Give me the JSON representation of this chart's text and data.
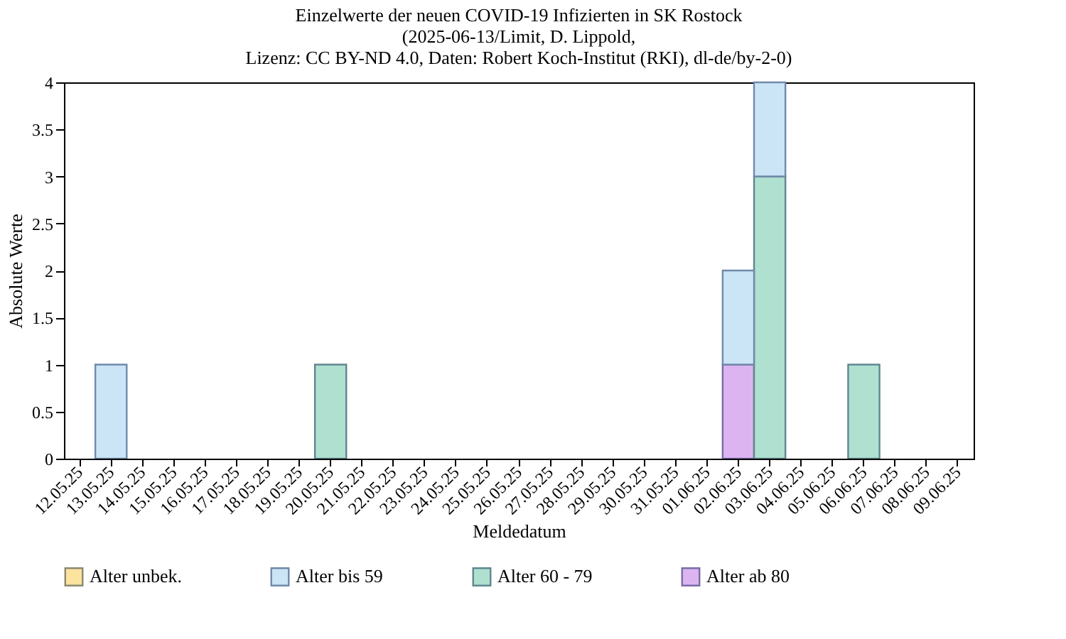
{
  "chart_data": {
    "type": "bar",
    "title": [
      "Einzelwerte der neuen COVID-19 Infizierten in SK Rostock",
      "(2025-06-13/Limit, D. Lippold,",
      "Lizenz: CC BY-ND 4.0, Daten: Robert Koch-Institut (RKI), dl-de/by-2-0)"
    ],
    "xlabel": "Meldedatum",
    "ylabel": "Absolute Werte",
    "categories": [
      "12.05.25",
      "13.05.25",
      "14.05.25",
      "15.05.25",
      "16.05.25",
      "17.05.25",
      "18.05.25",
      "19.05.25",
      "20.05.25",
      "21.05.25",
      "22.05.25",
      "23.05.25",
      "24.05.25",
      "25.05.25",
      "26.05.25",
      "27.05.25",
      "28.05.25",
      "29.05.25",
      "30.05.25",
      "31.05.25",
      "01.06.25",
      "02.06.25",
      "03.06.25",
      "04.06.25",
      "05.06.25",
      "06.06.25",
      "07.06.25",
      "08.06.25",
      "09.06.25"
    ],
    "stacked": true,
    "series": [
      {
        "name": "Alter ab 80",
        "color": "#dcb5f0",
        "values": [
          0,
          0,
          0,
          0,
          0,
          0,
          0,
          0,
          0,
          0,
          0,
          0,
          0,
          0,
          0,
          0,
          0,
          0,
          0,
          0,
          0,
          1,
          0,
          0,
          0,
          0,
          0,
          0,
          0
        ]
      },
      {
        "name": "Alter 60 - 79",
        "color": "#b0e0cf",
        "values": [
          0,
          0,
          0,
          0,
          0,
          0,
          0,
          0,
          1,
          0,
          0,
          0,
          0,
          0,
          0,
          0,
          0,
          0,
          0,
          0,
          0,
          0,
          3,
          0,
          0,
          1,
          0,
          0,
          0
        ]
      },
      {
        "name": "Alter bis 59",
        "color": "#cce5f6",
        "values": [
          0,
          1,
          0,
          0,
          0,
          0,
          0,
          0,
          0,
          0,
          0,
          0,
          0,
          0,
          0,
          0,
          0,
          0,
          0,
          0,
          0,
          1,
          1,
          0,
          0,
          0,
          0,
          0,
          0
        ]
      },
      {
        "name": "Alter unbek.",
        "color": "#fde3a0",
        "values": [
          0,
          0,
          0,
          0,
          0,
          0,
          0,
          0,
          0,
          0,
          0,
          0,
          0,
          0,
          0,
          0,
          0,
          0,
          0,
          0,
          0,
          0,
          0,
          0,
          0,
          0,
          0,
          0,
          0
        ]
      }
    ],
    "ylim": [
      0,
      4
    ],
    "yticks": [
      0,
      0.5,
      1,
      1.5,
      2,
      2.5,
      3,
      3.5,
      4
    ],
    "grid": false,
    "legend": "bottom"
  }
}
